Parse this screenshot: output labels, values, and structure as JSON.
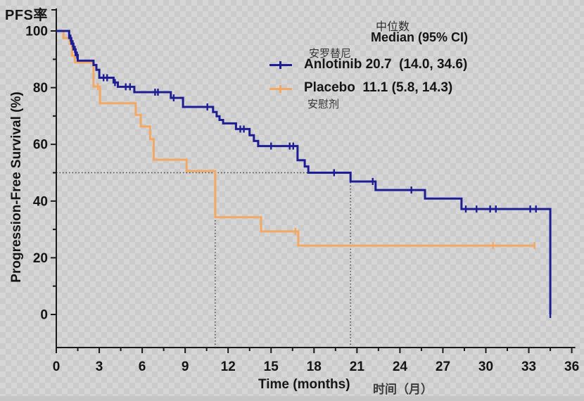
{
  "page": {
    "top_left_label": "PFS率"
  },
  "chart_data": {
    "type": "line",
    "subtype": "kaplan-meier-step",
    "xlabel": "Time (months)",
    "xlabel_cn": "时间（月）",
    "ylabel": "Progression-Free Survival (%)",
    "ylabel_cn_top": "PFS率",
    "xlim": [
      0,
      36
    ],
    "ylim": [
      0,
      100
    ],
    "x_tick_labels": [
      "0",
      "3",
      "6",
      "9",
      "12",
      "15",
      "18",
      "21",
      "24",
      "27",
      "30",
      "33",
      "36"
    ],
    "x_major_step": 3,
    "x_minor_step": 1.5,
    "y_tick_labels": [
      "0",
      "20",
      "40",
      "60",
      "80",
      "100"
    ],
    "y_major_step": 20,
    "y_minor_step": 10,
    "grid": false,
    "legend_position": "top-right",
    "reference": {
      "h_line_pct": 50,
      "h_line_from_month": 0,
      "h_line_to_month": 20.55,
      "v_lines_months": [
        11.1,
        20.55
      ],
      "color": "#444444"
    },
    "series": [
      {
        "name": "Placebo",
        "name_cn": "安慰剂",
        "color": "#f3a863",
        "median_months": 11.1,
        "ci_95": [
          5.8,
          14.3
        ],
        "steps": [
          [
            0,
            100
          ],
          [
            0.5,
            100
          ],
          [
            0.5,
            97.5
          ],
          [
            0.95,
            97.5
          ],
          [
            0.95,
            95.5
          ],
          [
            1.1,
            95.5
          ],
          [
            1.1,
            91.3
          ],
          [
            1.3,
            91.3
          ],
          [
            1.3,
            88.9
          ],
          [
            2.6,
            88.9
          ],
          [
            2.6,
            80.4
          ],
          [
            3.05,
            80.4
          ],
          [
            3.05,
            74.5
          ],
          [
            5.55,
            74.5
          ],
          [
            5.55,
            70.4
          ],
          [
            5.9,
            70.4
          ],
          [
            5.9,
            66.3
          ],
          [
            6.55,
            66.3
          ],
          [
            6.55,
            61.8
          ],
          [
            6.8,
            61.8
          ],
          [
            6.8,
            54.6
          ],
          [
            9.1,
            54.6
          ],
          [
            9.1,
            50.6
          ],
          [
            11.1,
            50.6
          ],
          [
            11.1,
            34.3
          ],
          [
            14.3,
            34.3
          ],
          [
            14.3,
            29.3
          ],
          [
            16.9,
            29.3
          ],
          [
            16.9,
            24.3
          ],
          [
            33.45,
            24.3
          ]
        ],
        "censors": [
          [
            2.9,
            80.4
          ],
          [
            16.7,
            29.3
          ],
          [
            30.5,
            24.3
          ],
          [
            33.4,
            24.3
          ]
        ]
      },
      {
        "name": "Anlotinib",
        "name_cn": "安罗替尼",
        "color": "#1d1d94",
        "median_months": 20.7,
        "ci_95": [
          14.0,
          34.6
        ],
        "steps": [
          [
            0,
            100
          ],
          [
            0.9,
            100
          ],
          [
            0.9,
            97.5
          ],
          [
            1.05,
            97.5
          ],
          [
            1.05,
            95.5
          ],
          [
            1.2,
            95.5
          ],
          [
            1.2,
            93.5
          ],
          [
            1.35,
            93.5
          ],
          [
            1.35,
            91.5
          ],
          [
            1.5,
            91.5
          ],
          [
            1.5,
            89.5
          ],
          [
            2.6,
            89.5
          ],
          [
            2.6,
            88
          ],
          [
            2.8,
            88
          ],
          [
            2.8,
            86.3
          ],
          [
            3.0,
            86.3
          ],
          [
            3.0,
            83.5
          ],
          [
            4.0,
            83.5
          ],
          [
            4.0,
            81.8
          ],
          [
            4.3,
            81.8
          ],
          [
            4.3,
            80.3
          ],
          [
            5.45,
            80.3
          ],
          [
            5.45,
            78.4
          ],
          [
            8.0,
            78.4
          ],
          [
            8.0,
            76.4
          ],
          [
            8.85,
            76.4
          ],
          [
            8.85,
            73.2
          ],
          [
            10.95,
            73.2
          ],
          [
            10.95,
            71.4
          ],
          [
            11.2,
            71.4
          ],
          [
            11.2,
            69.9
          ],
          [
            11.4,
            69.9
          ],
          [
            11.4,
            68.6
          ],
          [
            11.65,
            68.6
          ],
          [
            11.65,
            67.4
          ],
          [
            12.55,
            67.4
          ],
          [
            12.55,
            65.4
          ],
          [
            13.5,
            65.4
          ],
          [
            13.5,
            63.2
          ],
          [
            13.8,
            63.2
          ],
          [
            13.8,
            61.2
          ],
          [
            14.1,
            61.2
          ],
          [
            14.1,
            59.4
          ],
          [
            16.85,
            59.4
          ],
          [
            16.85,
            54.4
          ],
          [
            17.35,
            54.4
          ],
          [
            17.35,
            52.2
          ],
          [
            17.6,
            52.2
          ],
          [
            17.6,
            50.0
          ],
          [
            20.55,
            50.0
          ],
          [
            20.55,
            46.9
          ],
          [
            22.3,
            46.9
          ],
          [
            22.3,
            43.9
          ],
          [
            25.75,
            43.9
          ],
          [
            25.75,
            40.9
          ],
          [
            28.3,
            40.9
          ],
          [
            28.3,
            37.2
          ],
          [
            34.5,
            37.2
          ],
          [
            34.5,
            0
          ]
        ],
        "censors": [
          [
            1.0,
            97.5
          ],
          [
            1.15,
            95.5
          ],
          [
            1.3,
            93.5
          ],
          [
            1.45,
            91.5
          ],
          [
            3.3,
            83.5
          ],
          [
            3.55,
            83.5
          ],
          [
            4.1,
            81.8
          ],
          [
            4.85,
            80.3
          ],
          [
            5.15,
            80.3
          ],
          [
            6.9,
            78.4
          ],
          [
            7.1,
            78.4
          ],
          [
            8.2,
            76.4
          ],
          [
            10.55,
            73.2
          ],
          [
            12.85,
            65.4
          ],
          [
            13.1,
            65.4
          ],
          [
            15.0,
            59.4
          ],
          [
            16.3,
            59.4
          ],
          [
            16.55,
            59.4
          ],
          [
            19.4,
            50.0
          ],
          [
            22.1,
            46.9
          ],
          [
            24.8,
            43.9
          ],
          [
            28.6,
            37.2
          ],
          [
            29.35,
            37.2
          ],
          [
            30.3,
            37.2
          ],
          [
            30.7,
            37.2
          ],
          [
            33.1,
            37.2
          ],
          [
            33.5,
            37.2
          ],
          [
            34.5,
            0
          ]
        ]
      }
    ]
  },
  "legend": {
    "median_cn": "中位数",
    "median_label": "Median (95% CI)",
    "entries": [
      {
        "name_cn": "安罗替尼",
        "text": "Anlotinib 20.7  (14.0, 34.6)"
      },
      {
        "name_cn": "安慰剂",
        "text": "Placebo  11.1 (5.8, 14.3)"
      }
    ]
  },
  "colors": {
    "anlotinib": "#1d1d94",
    "placebo": "#f3a863",
    "axis": "#1a1a1a",
    "dotted_reference": "#444444"
  }
}
